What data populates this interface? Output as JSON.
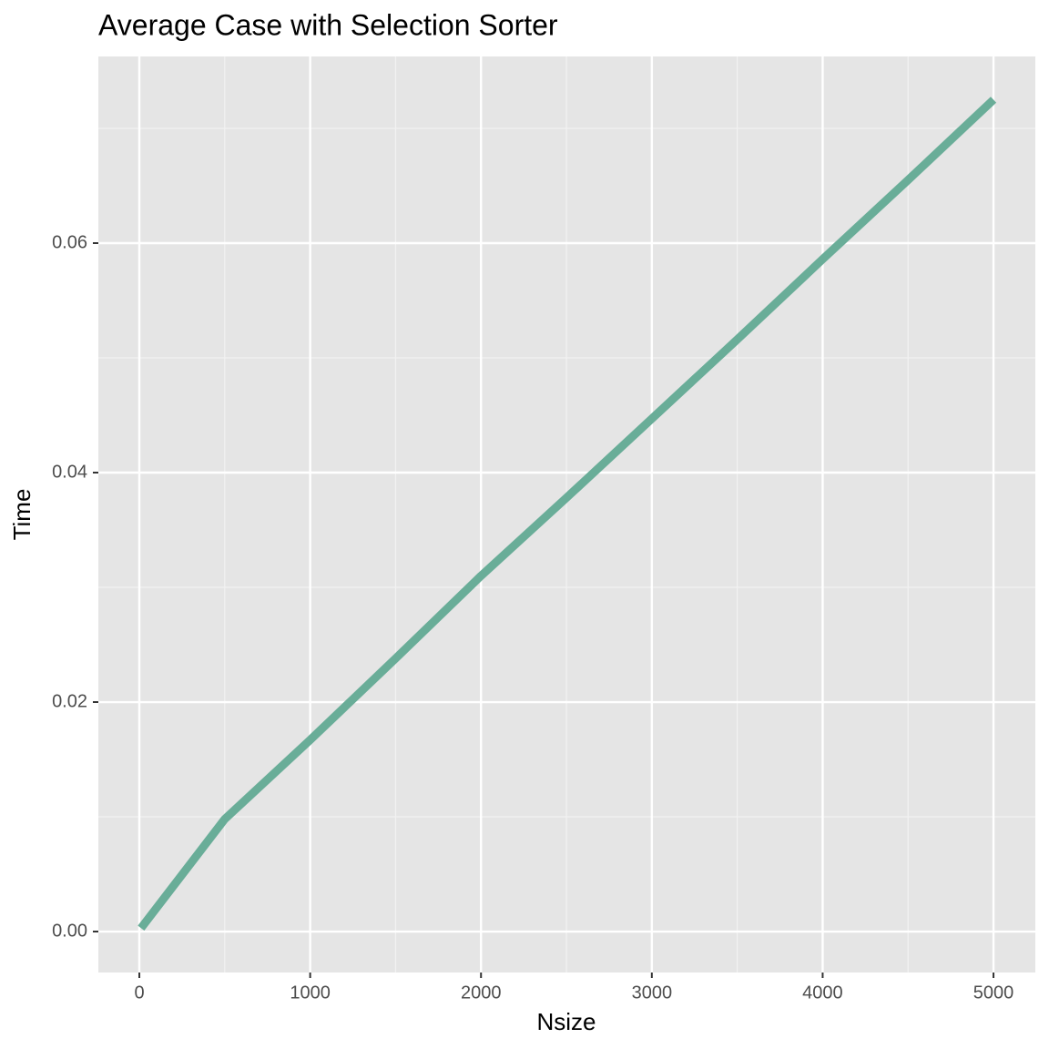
{
  "chart_data": {
    "type": "line",
    "title": "Average Case with Selection Sorter",
    "x_label": "Nsize",
    "y_label": "Time",
    "x": [
      10,
      500,
      1000,
      1500,
      2000,
      2500,
      3000,
      3500,
      4000,
      4500,
      5000
    ],
    "series": [
      {
        "color": "#69ad98",
        "values": [
          0.0003,
          0.0098,
          0.0167,
          0.0238,
          0.031,
          0.0378,
          0.0447,
          0.0516,
          0.0586,
          0.0655,
          0.0725
        ]
      }
    ],
    "xlim": [
      -240,
      5245
    ],
    "ylim": [
      -0.00357,
      0.07627
    ],
    "xticks": [
      0,
      1000,
      2000,
      3000,
      4000,
      5000
    ],
    "yticks": [
      {
        "value": 0,
        "label": "0.00"
      },
      {
        "value": 0.02,
        "label": "0.02"
      },
      {
        "value": 0.04,
        "label": "0.04"
      },
      {
        "value": 0.06,
        "label": "0.06"
      }
    ],
    "xminorticks": [
      500,
      1500,
      2500,
      3500,
      4500
    ],
    "yminorticks": [
      0.01,
      0.03,
      0.05,
      0.07
    ],
    "grid": true
  }
}
